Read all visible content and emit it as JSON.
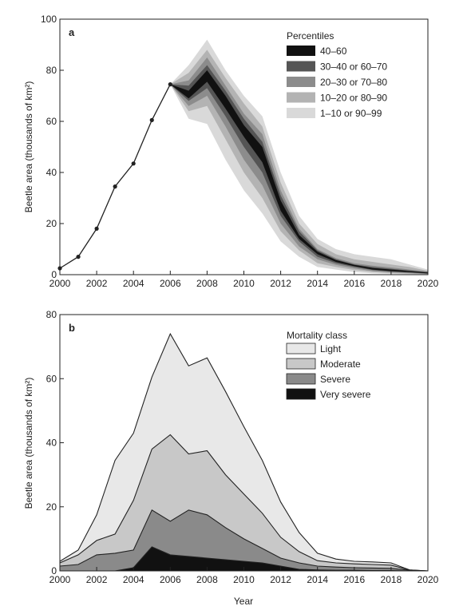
{
  "chart_data": [
    {
      "panel": "a",
      "type": "area",
      "ylabel": "Beetle area (thousands of km²)",
      "xlabel": "",
      "xlim": [
        2000,
        2020
      ],
      "ylim": [
        0,
        100
      ],
      "xticks": [
        2000,
        2002,
        2004,
        2006,
        2008,
        2010,
        2012,
        2014,
        2016,
        2018,
        2020
      ],
      "yticks": [
        0,
        20,
        40,
        60,
        80,
        100
      ],
      "legend_title": "Percentiles",
      "legend_position": "top-right",
      "observed": {
        "x": [
          2000,
          2001,
          2002,
          2003,
          2004,
          2005,
          2006
        ],
        "y": [
          2.5,
          7,
          18,
          34.5,
          43.5,
          60.5,
          74.5
        ]
      },
      "projection_x": [
        2006,
        2007,
        2008,
        2009,
        2010,
        2011,
        2012,
        2013,
        2014,
        2015,
        2016,
        2017,
        2018,
        2019,
        2020
      ],
      "bands": [
        {
          "name": "1–10 or 90–99",
          "color": "#d9d9d9",
          "low": [
            74.5,
            61,
            59,
            45,
            33,
            24,
            13,
            7,
            3,
            2,
            1,
            0.5,
            0.3,
            0.2,
            0.1
          ],
          "high": [
            74.5,
            82,
            92,
            80,
            70,
            62,
            40,
            23,
            14,
            10,
            8,
            7,
            6,
            4,
            2
          ]
        },
        {
          "name": "10–20 or 80–90",
          "color": "#b3b3b3",
          "low": [
            74.5,
            64,
            66,
            53,
            40,
            30,
            17,
            9.5,
            4.5,
            3,
            1.8,
            1,
            0.6,
            0.4,
            0.2
          ],
          "high": [
            74.5,
            79,
            88,
            77,
            67,
            58,
            36,
            20,
            12,
            8,
            6,
            5,
            4,
            3,
            1.5
          ]
        },
        {
          "name": "20–30 or 70–80",
          "color": "#8c8c8c",
          "low": [
            74.5,
            66,
            70,
            58,
            45,
            35,
            20,
            11,
            6,
            3.8,
            2.4,
            1.4,
            0.9,
            0.6,
            0.3
          ],
          "high": [
            74.5,
            76,
            85,
            74,
            63,
            55,
            33,
            18,
            10,
            6.5,
            4.5,
            3.5,
            2.8,
            2,
            1.2
          ]
        },
        {
          "name": "30–40 or 60–70",
          "color": "#555555",
          "low": [
            74.5,
            68,
            73,
            62,
            50,
            40,
            23,
            13,
            7,
            4.5,
            3,
            1.8,
            1.2,
            0.8,
            0.4
          ],
          "high": [
            74.5,
            74,
            82,
            72,
            61,
            52,
            31,
            17,
            9.5,
            6,
            4,
            3,
            2.3,
            1.6,
            1
          ]
        },
        {
          "name": "40–60",
          "color": "#111111",
          "low": [
            74.5,
            69,
            75.5,
            65,
            54,
            44,
            25,
            14,
            8,
            5,
            3.3,
            2,
            1.4,
            1,
            0.5
          ],
          "high": [
            74.5,
            72,
            80,
            70,
            58.5,
            50,
            29,
            15.5,
            9,
            5.7,
            3.8,
            2.6,
            2,
            1.4,
            0.8
          ]
        }
      ]
    },
    {
      "panel": "b",
      "type": "area",
      "ylabel": "Beetle area (thousands of km²)",
      "xlabel": "Year",
      "xlim": [
        2000,
        2020
      ],
      "ylim": [
        0,
        80
      ],
      "xticks": [
        2000,
        2002,
        2004,
        2006,
        2008,
        2010,
        2012,
        2014,
        2016,
        2018,
        2020
      ],
      "yticks": [
        0,
        20,
        40,
        60,
        80
      ],
      "legend_title": "Mortality class",
      "legend_position": "top-right",
      "x": [
        2000,
        2001,
        2002,
        2003,
        2004,
        2005,
        2006,
        2007,
        2008,
        2009,
        2010,
        2011,
        2012,
        2013,
        2014,
        2015,
        2016,
        2017,
        2018,
        2019,
        2020
      ],
      "series": [
        {
          "name": "Light",
          "color": "#e8e8e8",
          "cumulative": [
            3,
            6.5,
            17.5,
            34.5,
            43,
            60.5,
            74,
            64,
            66.5,
            56,
            45,
            34.5,
            21.5,
            12,
            5.5,
            3.7,
            3,
            2.8,
            2.5,
            0.3,
            0
          ]
        },
        {
          "name": "Moderate",
          "color": "#c8c8c8",
          "cumulative": [
            2.5,
            5,
            9.5,
            11.5,
            22,
            38,
            42.5,
            36.5,
            37.5,
            30,
            24,
            18,
            10.5,
            6,
            3.2,
            2.5,
            2.2,
            2,
            1.8,
            0.3,
            0
          ]
        },
        {
          "name": "Severe",
          "color": "#8a8a8a",
          "cumulative": [
            1.5,
            2,
            5,
            5.5,
            6.5,
            19,
            15.5,
            19,
            17.5,
            13.5,
            10,
            7,
            4,
            2.5,
            1.5,
            1.2,
            1,
            0.9,
            0.8,
            0.2,
            0
          ]
        },
        {
          "name": "Very severe",
          "color": "#111111",
          "cumulative": [
            0,
            0,
            0,
            0,
            1,
            7.5,
            5,
            4.5,
            4,
            3.5,
            3,
            2.5,
            1.5,
            0.5,
            0.3,
            0.2,
            0.2,
            0.1,
            0.1,
            0,
            0
          ]
        }
      ]
    }
  ]
}
